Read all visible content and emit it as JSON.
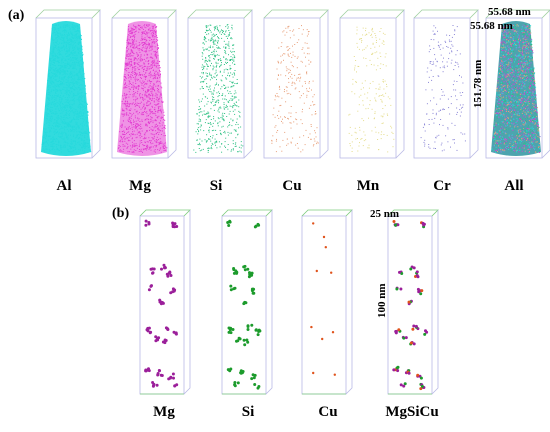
{
  "panel_a": {
    "label": "(a)",
    "elements": [
      {
        "name": "Al",
        "color": "#26d9dc"
      },
      {
        "name": "Mg",
        "color": "#e23ad0"
      },
      {
        "name": "Si",
        "color": "#2ec084"
      },
      {
        "name": "Cu",
        "color": "#e8a07a"
      },
      {
        "name": "Mn",
        "color": "#e4dc8c"
      },
      {
        "name": "Cr",
        "color": "#8a86d6"
      },
      {
        "name": "All",
        "color": "#2aa0a8"
      }
    ],
    "dim_x": "55.68 nm",
    "dim_y": "55.68 nm",
    "dim_z": "151.78 nm"
  },
  "panel_b": {
    "label": "(b)",
    "elements": [
      {
        "name": "Mg",
        "color": "#9b1f9a"
      },
      {
        "name": "Si",
        "color": "#1c9b2c"
      },
      {
        "name": "Cu",
        "color": "#e0531c"
      },
      {
        "name": "MgSiCu",
        "color": "#9b1f9a"
      }
    ],
    "dim_width": "25 nm",
    "dim_height": "100 nm"
  }
}
